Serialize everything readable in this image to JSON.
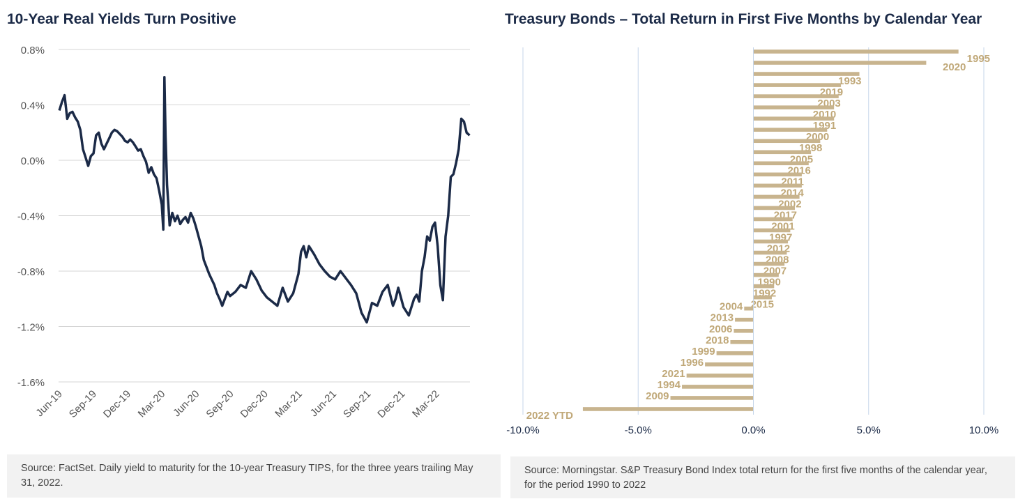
{
  "chart_data": [
    {
      "type": "line",
      "title": "10-Year Real Yields Turn Positive",
      "xlabel": "",
      "ylabel": "",
      "ylim": [
        -1.6,
        0.8
      ],
      "y_ticks": [
        0.8,
        0.4,
        0.0,
        -0.4,
        -0.8,
        -1.2,
        -1.6
      ],
      "y_tick_labels": [
        "0.8%",
        "0.4%",
        "0.0%",
        "-0.4%",
        "-0.8%",
        "-1.2%",
        "-1.6%"
      ],
      "x_tick_labels": [
        "Jun-19",
        "Sep-19",
        "Dec-19",
        "Mar-20",
        "Jun-20",
        "Sep-20",
        "Dec-20",
        "Mar-21",
        "Jun-21",
        "Sep-21",
        "Dec-21",
        "Mar-22"
      ],
      "grid": true,
      "line_color": "#1b2a47",
      "series": [
        {
          "x": [
            "2019-06-03",
            "2019-06-10",
            "2019-06-17",
            "2019-06-24",
            "2019-07-01",
            "2019-07-08",
            "2019-07-15",
            "2019-07-22",
            "2019-07-29",
            "2019-08-05",
            "2019-08-12",
            "2019-08-19",
            "2019-08-26",
            "2019-09-02",
            "2019-09-09",
            "2019-09-16",
            "2019-09-23",
            "2019-09-30",
            "2019-10-07",
            "2019-10-14",
            "2019-10-21",
            "2019-10-28",
            "2019-11-04",
            "2019-11-11",
            "2019-11-18",
            "2019-11-25",
            "2019-12-02",
            "2019-12-09",
            "2019-12-16",
            "2019-12-23",
            "2019-12-30",
            "2020-01-06",
            "2020-01-13",
            "2020-01-20",
            "2020-01-27",
            "2020-02-03",
            "2020-02-10",
            "2020-02-17",
            "2020-02-24",
            "2020-03-02",
            "2020-03-06",
            "2020-03-09",
            "2020-03-12",
            "2020-03-16",
            "2020-03-19",
            "2020-03-23",
            "2020-03-30",
            "2020-04-06",
            "2020-04-13",
            "2020-04-20",
            "2020-04-27",
            "2020-05-04",
            "2020-05-11",
            "2020-05-18",
            "2020-05-25",
            "2020-06-01",
            "2020-06-08",
            "2020-06-15",
            "2020-06-22",
            "2020-06-29",
            "2020-07-06",
            "2020-07-13",
            "2020-07-20",
            "2020-07-27",
            "2020-08-03",
            "2020-08-10",
            "2020-08-17",
            "2020-08-24",
            "2020-08-31",
            "2020-09-14",
            "2020-09-28",
            "2020-10-12",
            "2020-10-26",
            "2020-11-09",
            "2020-11-23",
            "2020-12-07",
            "2020-12-21",
            "2021-01-04",
            "2021-01-18",
            "2021-02-01",
            "2021-02-15",
            "2021-03-01",
            "2021-03-08",
            "2021-03-15",
            "2021-03-22",
            "2021-03-29",
            "2021-04-12",
            "2021-04-26",
            "2021-05-10",
            "2021-05-24",
            "2021-06-07",
            "2021-06-21",
            "2021-07-05",
            "2021-07-19",
            "2021-08-02",
            "2021-08-09",
            "2021-08-16",
            "2021-08-30",
            "2021-09-13",
            "2021-09-27",
            "2021-10-11",
            "2021-10-25",
            "2021-11-08",
            "2021-11-15",
            "2021-11-22",
            "2021-12-06",
            "2021-12-20",
            "2022-01-03",
            "2022-01-10",
            "2022-01-17",
            "2022-01-24",
            "2022-01-31",
            "2022-02-07",
            "2022-02-14",
            "2022-02-21",
            "2022-02-28",
            "2022-03-07",
            "2022-03-14",
            "2022-03-21",
            "2022-03-28",
            "2022-04-04",
            "2022-04-11",
            "2022-04-18",
            "2022-04-25",
            "2022-05-02",
            "2022-05-09",
            "2022-05-16",
            "2022-05-23",
            "2022-05-31"
          ],
          "values": [
            0.36,
            0.42,
            0.47,
            0.3,
            0.34,
            0.35,
            0.31,
            0.28,
            0.22,
            0.08,
            0.02,
            -0.04,
            0.03,
            0.05,
            0.18,
            0.2,
            0.12,
            0.08,
            0.12,
            0.16,
            0.2,
            0.22,
            0.21,
            0.19,
            0.17,
            0.14,
            0.13,
            0.15,
            0.13,
            0.1,
            0.07,
            0.08,
            0.03,
            -0.01,
            -0.09,
            -0.05,
            -0.1,
            -0.13,
            -0.22,
            -0.32,
            -0.5,
            0.6,
            0.18,
            -0.18,
            -0.3,
            -0.47,
            -0.38,
            -0.44,
            -0.4,
            -0.46,
            -0.43,
            -0.41,
            -0.45,
            -0.38,
            -0.42,
            -0.48,
            -0.55,
            -0.62,
            -0.72,
            -0.77,
            -0.82,
            -0.86,
            -0.9,
            -0.96,
            -1.0,
            -1.05,
            -1.0,
            -0.95,
            -0.98,
            -0.95,
            -0.9,
            -0.92,
            -0.8,
            -0.86,
            -0.94,
            -0.99,
            -1.02,
            -1.05,
            -0.92,
            -1.02,
            -0.96,
            -0.82,
            -0.66,
            -0.62,
            -0.7,
            -0.62,
            -0.68,
            -0.75,
            -0.8,
            -0.84,
            -0.86,
            -0.8,
            -0.85,
            -0.9,
            -0.96,
            -1.03,
            -1.1,
            -1.17,
            -1.03,
            -1.05,
            -0.95,
            -0.9,
            -1.05,
            -1.0,
            -0.92,
            -1.06,
            -1.12,
            -1.0,
            -0.97,
            -1.02,
            -0.8,
            -0.7,
            -0.55,
            -0.58,
            -0.48,
            -0.45,
            -0.62,
            -0.9,
            -1.01,
            -0.55,
            -0.4,
            -0.12,
            -0.1,
            -0.02,
            0.08,
            0.3,
            0.28,
            0.2,
            0.18
          ]
        }
      ]
    },
    {
      "type": "bar",
      "orientation": "horizontal",
      "title": "Treasury Bonds – Total Return in First Five Months by Calendar Year",
      "xlabel": "",
      "ylabel": "",
      "xlim": [
        -10.0,
        10.0
      ],
      "x_ticks": [
        -10.0,
        -5.0,
        0.0,
        5.0,
        10.0
      ],
      "x_tick_labels": [
        "-10.0%",
        "-5.0%",
        "0.0%",
        "5.0%",
        "10.0%"
      ],
      "grid": true,
      "bar_color": "#c8b48e",
      "label_color": "#c0a878",
      "categories": [
        "1995",
        "2020",
        "1993",
        "2019",
        "2003",
        "2010",
        "1991",
        "2000",
        "1998",
        "2005",
        "2016",
        "2011",
        "2014",
        "2002",
        "2017",
        "2001",
        "1997",
        "2012",
        "2008",
        "2007",
        "1990",
        "1992",
        "2015",
        "2004",
        "2013",
        "2006",
        "2018",
        "1999",
        "1996",
        "2021",
        "1994",
        "2009",
        "2022 YTD"
      ],
      "values": [
        8.9,
        7.5,
        4.6,
        3.8,
        3.7,
        3.5,
        3.5,
        3.2,
        2.9,
        2.5,
        2.4,
        2.1,
        2.1,
        2.0,
        1.8,
        1.7,
        1.6,
        1.5,
        1.45,
        1.35,
        1.1,
        0.9,
        0.8,
        -0.4,
        -0.8,
        -0.85,
        -1.0,
        -1.6,
        -2.1,
        -2.9,
        -3.1,
        -3.6,
        -7.4
      ]
    }
  ],
  "sources": {
    "left": "Source: FactSet. Daily yield to maturity for the 10-year Treasury TIPS, for the three years trailing May 31, 2022.",
    "right": "Source: Morningstar. S&P Treasury Bond Index total return for the first five months of the calendar year, for the period 1990 to 2022"
  }
}
